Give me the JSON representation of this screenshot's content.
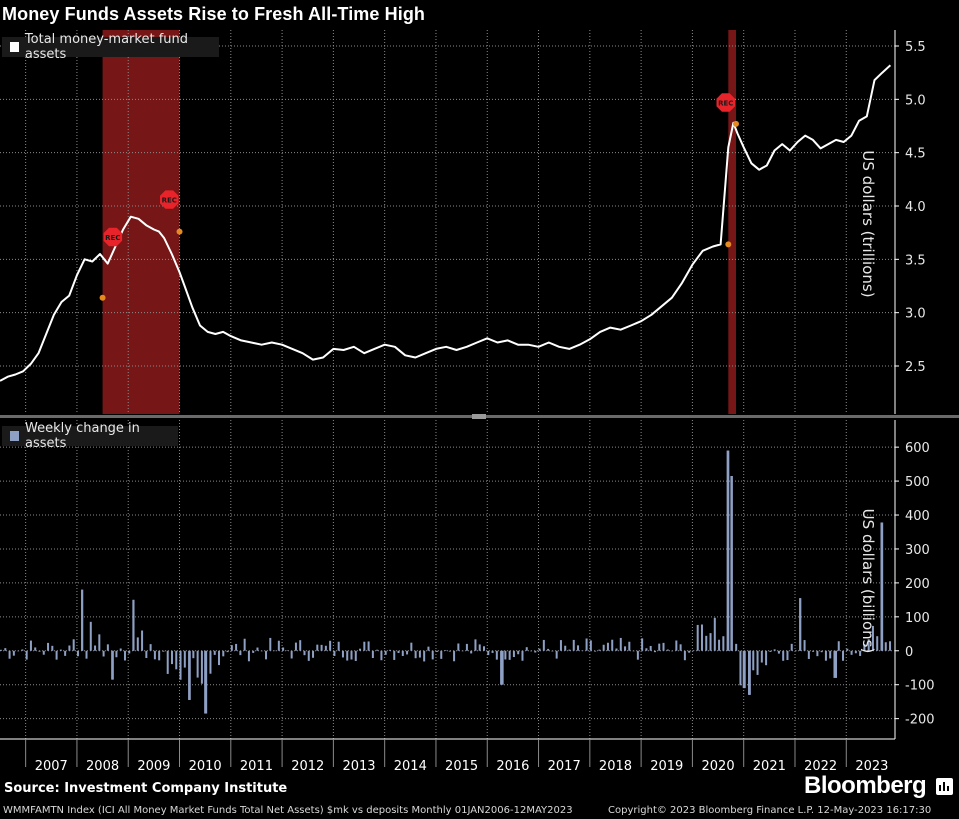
{
  "title": "Money Funds Assets Rise to Fresh All-Time High",
  "source": "Source: Investment Company Institute",
  "brand": "Bloomberg",
  "footer_left": "WMMFAMTN Index (ICI All Money Market Funds Total Net Assets) $mk vs deposits  Monthly 01JAN2006-12MAY2023",
  "footer_right": "Copyright© 2023 Bloomberg Finance L.P.   12-May-2023 16:17:30",
  "colors": {
    "background": "#000000",
    "line": "#ffffff",
    "bar": "#8ea0c4",
    "recession": "#8b1a1a",
    "rec_badge": "#e8232a",
    "marker": "#e58a1f",
    "grid": "#8a8a8a"
  },
  "chart_data": [
    {
      "type": "line",
      "legend": "Total money-market fund assets",
      "ylabel": "US dollars (trillions)",
      "ylim": [
        2.05,
        5.65
      ],
      "yticks": [
        "2.5",
        "3.0",
        "3.5",
        "4.0",
        "4.5",
        "5.0",
        "5.5"
      ],
      "grid": true,
      "legend_position": "top-left",
      "recessions": [
        {
          "start": 2008.0,
          "end": 2009.5,
          "label": "REC"
        },
        {
          "start": 2020.2,
          "end": 2020.35,
          "label": "REC"
        }
      ],
      "rec_badges": [
        {
          "x": 2008.2,
          "y": 3.71,
          "label": "REC"
        },
        {
          "x": 2009.3,
          "y": 4.06,
          "label": "REC"
        },
        {
          "x": 2020.15,
          "y": 4.97,
          "label": "REC"
        }
      ],
      "markers": [
        {
          "x": 2008.0,
          "y": 3.14
        },
        {
          "x": 2009.5,
          "y": 3.76
        },
        {
          "x": 2020.2,
          "y": 3.64
        },
        {
          "x": 2020.35,
          "y": 4.77
        }
      ],
      "x": [
        2006.0,
        2006.15,
        2006.3,
        2006.45,
        2006.6,
        2006.75,
        2006.9,
        2007.05,
        2007.2,
        2007.35,
        2007.5,
        2007.65,
        2007.8,
        2007.95,
        2008.1,
        2008.25,
        2008.4,
        2008.55,
        2008.7,
        2008.85,
        2009.0,
        2009.1,
        2009.2,
        2009.35,
        2009.5,
        2009.6,
        2009.75,
        2009.9,
        2010.05,
        2010.2,
        2010.35,
        2010.5,
        2010.7,
        2010.9,
        2011.1,
        2011.3,
        2011.5,
        2011.7,
        2011.9,
        2012.1,
        2012.3,
        2012.5,
        2012.7,
        2012.9,
        2013.1,
        2013.3,
        2013.5,
        2013.7,
        2013.9,
        2014.1,
        2014.3,
        2014.5,
        2014.7,
        2014.9,
        2015.1,
        2015.3,
        2015.5,
        2015.7,
        2015.9,
        2016.1,
        2016.3,
        2016.5,
        2016.7,
        2016.9,
        2017.1,
        2017.3,
        2017.5,
        2017.7,
        2017.9,
        2018.1,
        2018.3,
        2018.5,
        2018.7,
        2018.9,
        2019.1,
        2019.3,
        2019.5,
        2019.7,
        2019.9,
        2020.05,
        2020.2,
        2020.3,
        2020.38,
        2020.5,
        2020.65,
        2020.8,
        2020.95,
        2021.1,
        2021.25,
        2021.4,
        2021.55,
        2021.7,
        2021.85,
        2022.0,
        2022.15,
        2022.3,
        2022.45,
        2022.6,
        2022.75,
        2022.9,
        2023.05,
        2023.2,
        2023.36
      ],
      "y": [
        2.36,
        2.4,
        2.42,
        2.45,
        2.52,
        2.62,
        2.8,
        2.98,
        3.1,
        3.16,
        3.35,
        3.5,
        3.48,
        3.55,
        3.46,
        3.62,
        3.78,
        3.9,
        3.88,
        3.82,
        3.78,
        3.76,
        3.7,
        3.55,
        3.38,
        3.25,
        3.05,
        2.88,
        2.82,
        2.8,
        2.82,
        2.78,
        2.74,
        2.72,
        2.7,
        2.72,
        2.7,
        2.66,
        2.62,
        2.56,
        2.58,
        2.66,
        2.65,
        2.68,
        2.62,
        2.66,
        2.7,
        2.68,
        2.6,
        2.58,
        2.62,
        2.66,
        2.68,
        2.65,
        2.68,
        2.72,
        2.76,
        2.72,
        2.74,
        2.7,
        2.7,
        2.68,
        2.72,
        2.68,
        2.66,
        2.7,
        2.75,
        2.82,
        2.86,
        2.84,
        2.88,
        2.92,
        2.98,
        3.06,
        3.14,
        3.28,
        3.45,
        3.58,
        3.62,
        3.64,
        4.55,
        4.78,
        4.68,
        4.55,
        4.4,
        4.34,
        4.38,
        4.52,
        4.58,
        4.52,
        4.6,
        4.66,
        4.62,
        4.54,
        4.58,
        4.62,
        4.6,
        4.66,
        4.8,
        4.84,
        5.18,
        5.25,
        5.32
      ]
    },
    {
      "type": "bar",
      "legend": "Weekly change in assets",
      "ylabel": "US dollars (billions)",
      "ylim": [
        -260,
        680
      ],
      "yticks": [
        "-200",
        "-100",
        "0",
        "100",
        "200",
        "300",
        "400",
        "500",
        "600"
      ],
      "grid": true,
      "legend_position": "top-left",
      "xlim": [
        2006.0,
        2023.45
      ],
      "xticks": [
        "2007",
        "2008",
        "2009",
        "2010",
        "2011",
        "2012",
        "2013",
        "2014",
        "2015",
        "2016",
        "2017",
        "2018",
        "2019",
        "2020",
        "2021",
        "2022",
        "2023"
      ],
      "notable_values": [
        {
          "x": 2020.2,
          "value": 590
        },
        {
          "x": 2020.26,
          "value": 515
        },
        {
          "x": 2023.2,
          "value": 378
        },
        {
          "x": 2008.6,
          "value": 150
        },
        {
          "x": 2007.6,
          "value": 180
        },
        {
          "x": 2009.7,
          "value": -145
        },
        {
          "x": 2010.0,
          "value": -185
        },
        {
          "x": 2020.62,
          "value": -130
        },
        {
          "x": 2020.5,
          "value": -110
        },
        {
          "x": 2022.3,
          "value": -80
        },
        {
          "x": 2015.8,
          "value": -100
        },
        {
          "x": 2008.2,
          "value": -85
        },
        {
          "x": 2021.6,
          "value": 155
        }
      ]
    }
  ]
}
